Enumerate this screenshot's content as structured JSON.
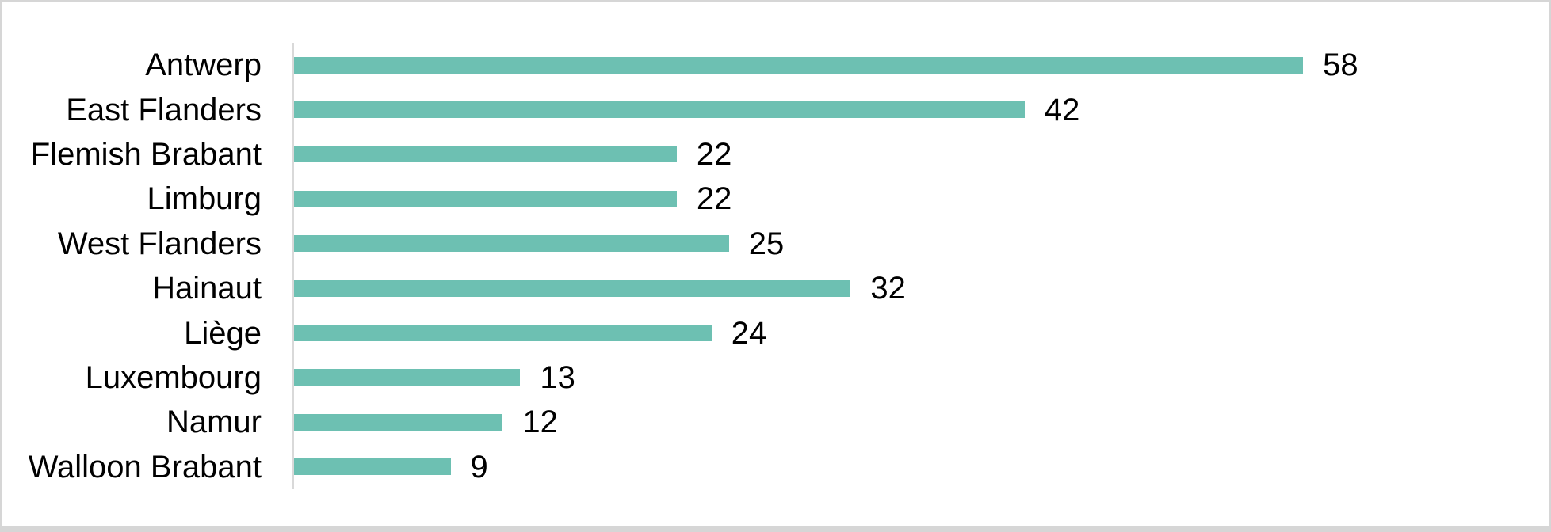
{
  "chart_data": {
    "type": "bar",
    "orientation": "horizontal",
    "title": "",
    "xlabel": "",
    "ylabel": "",
    "categories": [
      "Antwerp",
      "East Flanders",
      "Flemish Brabant",
      "Limburg",
      "West Flanders",
      "Hainaut",
      "Liège",
      "Luxembourg",
      "Namur",
      "Walloon Brabant"
    ],
    "values": [
      58,
      42,
      22,
      22,
      25,
      32,
      24,
      13,
      12,
      9
    ],
    "xlim": [
      0,
      60
    ],
    "grid": false,
    "legend": "none",
    "data_labels": "outside-end",
    "bar_color": "#6DC0B2",
    "axis_line_color": "#D9D9D9",
    "text_color": "#000000",
    "frame_border_color": "#D6D6D6",
    "background_color": "#FFFFFF"
  }
}
